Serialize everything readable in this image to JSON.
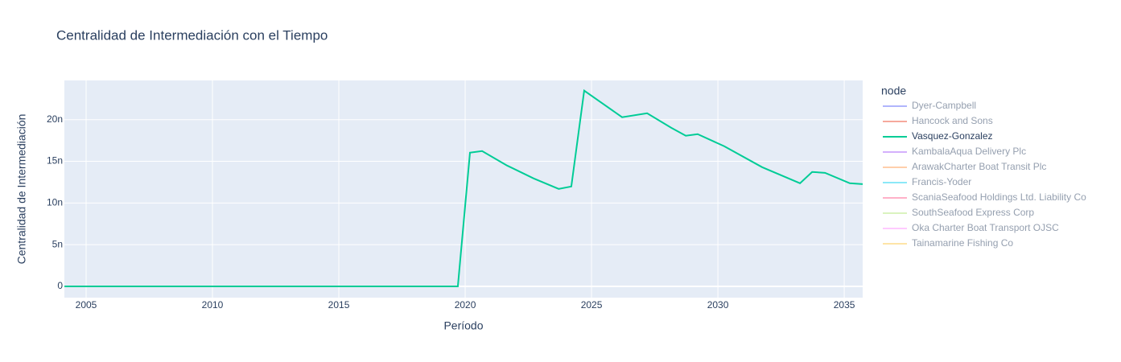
{
  "chart_data": {
    "type": "line",
    "title": "Centralidad de Intermediación con el Tiempo",
    "xlabel": "Período",
    "ylabel": "Centralidad de Intermediación",
    "legend_title": "node",
    "legend_position": "right",
    "grid": true,
    "xlim": [
      2004.14,
      2035.73
    ],
    "ylim": [
      -1.35e-09,
      2.47e-08
    ],
    "xticks": [
      2005,
      2010,
      2015,
      2020,
      2025,
      2030,
      2035
    ],
    "yticks": [
      0,
      {
        "value": 5e-09,
        "label": "5n"
      },
      {
        "value": 1e-08,
        "label": "10n"
      },
      {
        "value": 1.5e-08,
        "label": "15n"
      },
      {
        "value": 2e-08,
        "label": "20n"
      }
    ],
    "series": [
      {
        "name": "Dyer-Campbell",
        "color": "#636efa",
        "visible": false
      },
      {
        "name": "Hancock and Sons",
        "color": "#EF553B",
        "visible": false
      },
      {
        "name": "Vasquez-Gonzalez",
        "color": "#00cc96",
        "visible": true,
        "x": [
          2004.14,
          2019.71,
          2020.19,
          2020.67,
          2021.66,
          2022.71,
          2023.7,
          2024.2,
          2024.71,
          2026.21,
          2027.2,
          2028.15,
          2028.73,
          2029.2,
          2030.25,
          2031.75,
          2033.25,
          2033.73,
          2034.24,
          2035.22,
          2035.73
        ],
        "values": [
          0,
          0,
          1.604e-08,
          1.623e-08,
          1.449e-08,
          1.295e-08,
          1.169e-08,
          1.198e-08,
          2.348e-08,
          2.029e-08,
          2.077e-08,
          1.903e-08,
          1.807e-08,
          1.826e-08,
          1.681e-08,
          1.43e-08,
          1.237e-08,
          1.372e-08,
          1.362e-08,
          1.237e-08,
          1.227e-08
        ]
      },
      {
        "name": "KambalaAqua Delivery Plc",
        "color": "#ab63fa",
        "visible": false
      },
      {
        "name": "ArawakCharter Boat Transit Plc",
        "color": "#FFA15A",
        "visible": false
      },
      {
        "name": "Francis-Yoder",
        "color": "#19d3f3",
        "visible": false
      },
      {
        "name": "ScaniaSeafood Holdings Ltd. Liability Co",
        "color": "#FF6692",
        "visible": false
      },
      {
        "name": "SouthSeafood Express Corp",
        "color": "#B6E880",
        "visible": false
      },
      {
        "name": "Oka Charter Boat Transport OJSC",
        "color": "#FF97FF",
        "visible": false
      },
      {
        "name": "Tainamarine Fishing Co",
        "color": "#FECB52",
        "visible": false
      }
    ]
  }
}
